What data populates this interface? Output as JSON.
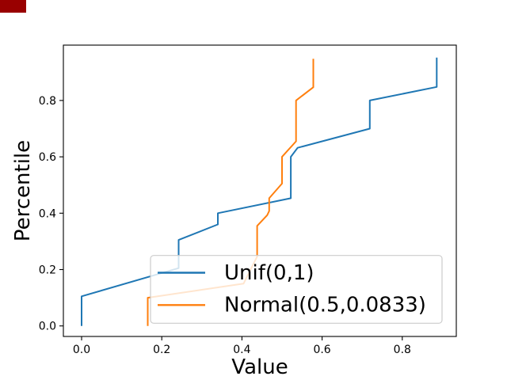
{
  "record_indicator": {
    "color": "#990000"
  },
  "chart_data": {
    "type": "line",
    "title": "",
    "xlabel": "Value",
    "ylabel": "Percentile",
    "x_ticks": [
      0.0,
      0.2,
      0.4,
      0.6,
      0.8
    ],
    "x_tick_labels": [
      "0.0",
      "0.2",
      "0.4",
      "0.6",
      "0.8"
    ],
    "y_ticks": [
      0.0,
      0.2,
      0.4,
      0.6,
      0.8
    ],
    "y_tick_labels": [
      "0.0",
      "0.2",
      "0.4",
      "0.6",
      "0.8"
    ],
    "xlim": [
      -0.045,
      0.932
    ],
    "ylim": [
      -0.048,
      0.997
    ],
    "grid": false,
    "legend": {
      "position": "lower-center-inside",
      "frame_alpha": 0.8
    },
    "series": [
      {
        "name": "Unif(0,1)",
        "color": "#1f77b4",
        "points": [
          [
            0.0,
            0.0
          ],
          [
            0.0,
            0.105
          ],
          [
            0.242,
            0.205
          ],
          [
            0.242,
            0.305
          ],
          [
            0.34,
            0.36
          ],
          [
            0.34,
            0.4
          ],
          [
            0.522,
            0.453
          ],
          [
            0.522,
            0.6
          ],
          [
            0.539,
            0.632
          ],
          [
            0.719,
            0.7
          ],
          [
            0.719,
            0.8
          ],
          [
            0.886,
            0.848
          ],
          [
            0.886,
            0.952
          ]
        ]
      },
      {
        "name": "Normal(0.5,0.0833)",
        "color": "#ff7f0e",
        "points": [
          [
            0.165,
            0.0
          ],
          [
            0.165,
            0.1
          ],
          [
            0.404,
            0.15
          ],
          [
            0.438,
            0.246
          ],
          [
            0.438,
            0.355
          ],
          [
            0.463,
            0.393
          ],
          [
            0.468,
            0.408
          ],
          [
            0.468,
            0.453
          ],
          [
            0.5,
            0.505
          ],
          [
            0.5,
            0.6
          ],
          [
            0.535,
            0.655
          ],
          [
            0.535,
            0.8
          ],
          [
            0.578,
            0.847
          ],
          [
            0.578,
            0.948
          ]
        ]
      }
    ]
  }
}
